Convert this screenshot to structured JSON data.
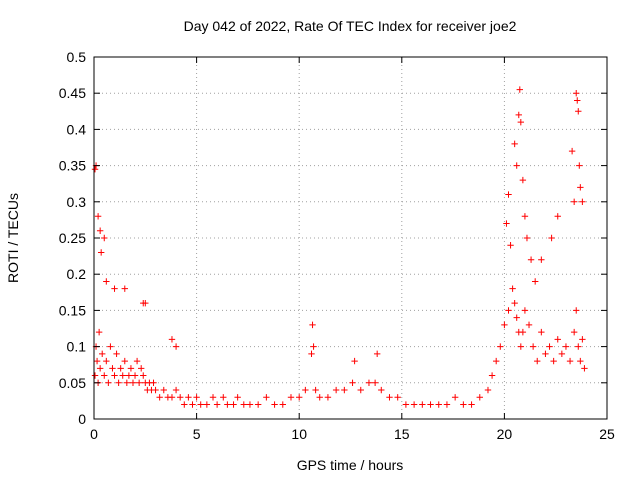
{
  "chart_data": {
    "type": "scatter",
    "title": "Day 042 of 2022, Rate Of TEC Index for receiver joe2",
    "xlabel": "GPS time / hours",
    "ylabel": "ROTI / TECUs",
    "xlim": [
      0,
      25
    ],
    "ylim": [
      0,
      0.5
    ],
    "xticks": [
      0,
      5,
      10,
      15,
      20,
      25
    ],
    "yticks": [
      0,
      0.05,
      0.1,
      0.15,
      0.2,
      0.25,
      0.3,
      0.35,
      0.4,
      0.45,
      0.5
    ],
    "xtick_labels": [
      "0",
      "5",
      "10",
      "15",
      "20",
      "25"
    ],
    "ytick_labels": [
      "0",
      "0.05",
      "0.1",
      "0.15",
      "0.2",
      "0.25",
      "0.3",
      "0.35",
      "0.4",
      "0.45",
      "0.5"
    ],
    "grid": true,
    "marker": "+",
    "color": "#ff0000",
    "series": [
      {
        "x": [
          0.05,
          0.1,
          0.15,
          0.2,
          0.25,
          0.3,
          0.4,
          0.5,
          0.6,
          0.7,
          0.8,
          0.9,
          1.0,
          1.1,
          1.2,
          1.3,
          1.4,
          1.5,
          1.6,
          1.7,
          1.8,
          1.9,
          2.0,
          2.1,
          2.2,
          2.3,
          2.4,
          2.5,
          2.6,
          2.7,
          2.8,
          2.9,
          3.0,
          3.2,
          3.4,
          3.6,
          3.8,
          4.0,
          4.2,
          4.4,
          4.6,
          4.8,
          5.0,
          5.2,
          5.5,
          5.8,
          6.0,
          6.3,
          6.5,
          6.8,
          7.0,
          7.3,
          7.6,
          8.0,
          8.4,
          8.8,
          9.2,
          9.6,
          10.0,
          10.3,
          10.6,
          10.65,
          10.7,
          10.8,
          11.0,
          11.4,
          11.8,
          12.2,
          12.6,
          12.7,
          13.0,
          13.4,
          13.7,
          13.8,
          14.0,
          14.4,
          14.8,
          15.2,
          15.6,
          16.0,
          16.4,
          16.8,
          17.2,
          17.6,
          18.0,
          18.4,
          18.8,
          19.2,
          19.4,
          19.6,
          19.8,
          20.0,
          20.2,
          20.4,
          20.5,
          20.6,
          20.7,
          20.8,
          20.9,
          21.0,
          21.2,
          21.4,
          21.6,
          21.8,
          22.0,
          22.2,
          22.4,
          22.6,
          22.8,
          23.0,
          23.2,
          23.4,
          23.5,
          23.6,
          23.7,
          23.8,
          23.9,
          0.05,
          0.1,
          0.2,
          0.3,
          0.35,
          0.5,
          0.6,
          1.0,
          1.5,
          2.4,
          2.5,
          3.8,
          4.0,
          20.1,
          20.2,
          20.3,
          20.5,
          20.6,
          20.7,
          20.75,
          20.8,
          20.9,
          21.0,
          21.1,
          21.3,
          21.5,
          21.8,
          22.3,
          22.6,
          23.3,
          23.4,
          23.5,
          23.55,
          23.6,
          23.65,
          23.7,
          23.8
        ],
        "y": [
          0.06,
          0.1,
          0.08,
          0.05,
          0.12,
          0.07,
          0.09,
          0.06,
          0.08,
          0.05,
          0.1,
          0.07,
          0.06,
          0.09,
          0.05,
          0.07,
          0.06,
          0.08,
          0.05,
          0.06,
          0.07,
          0.05,
          0.06,
          0.08,
          0.05,
          0.07,
          0.06,
          0.05,
          0.04,
          0.05,
          0.04,
          0.05,
          0.04,
          0.03,
          0.04,
          0.03,
          0.03,
          0.04,
          0.03,
          0.02,
          0.03,
          0.02,
          0.03,
          0.02,
          0.02,
          0.03,
          0.02,
          0.03,
          0.02,
          0.02,
          0.03,
          0.02,
          0.02,
          0.02,
          0.03,
          0.02,
          0.02,
          0.03,
          0.03,
          0.04,
          0.09,
          0.13,
          0.1,
          0.04,
          0.03,
          0.03,
          0.04,
          0.04,
          0.05,
          0.08,
          0.04,
          0.05,
          0.05,
          0.09,
          0.04,
          0.03,
          0.03,
          0.02,
          0.02,
          0.02,
          0.02,
          0.02,
          0.02,
          0.03,
          0.02,
          0.02,
          0.03,
          0.04,
          0.06,
          0.08,
          0.1,
          0.13,
          0.15,
          0.18,
          0.16,
          0.14,
          0.12,
          0.1,
          0.12,
          0.15,
          0.13,
          0.1,
          0.08,
          0.12,
          0.09,
          0.1,
          0.08,
          0.11,
          0.09,
          0.1,
          0.08,
          0.12,
          0.15,
          0.1,
          0.08,
          0.11,
          0.07,
          0.345,
          0.35,
          0.28,
          0.26,
          0.23,
          0.25,
          0.19,
          0.18,
          0.18,
          0.16,
          0.16,
          0.11,
          0.1,
          0.27,
          0.31,
          0.24,
          0.38,
          0.35,
          0.42,
          0.455,
          0.41,
          0.33,
          0.28,
          0.25,
          0.22,
          0.19,
          0.22,
          0.25,
          0.28,
          0.37,
          0.3,
          0.45,
          0.44,
          0.425,
          0.35,
          0.32,
          0.3
        ]
      }
    ]
  }
}
